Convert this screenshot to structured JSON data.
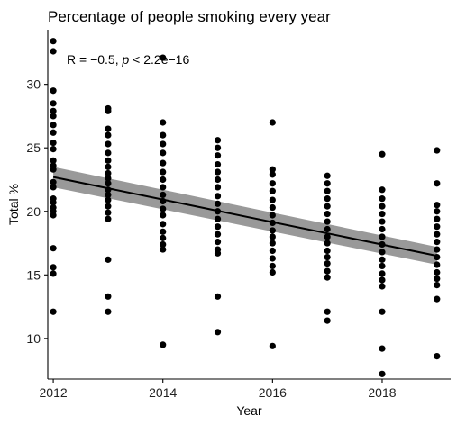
{
  "chart_data": {
    "type": "scatter",
    "title": "Percentage of people smoking every year",
    "xlabel": "Year",
    "ylabel": "Total %",
    "xlim": [
      2011.9,
      2019.25
    ],
    "ylim": [
      6.8,
      34.3
    ],
    "x_ticks": [
      2012,
      2014,
      2016,
      2018
    ],
    "y_ticks": [
      10,
      15,
      20,
      25,
      30
    ],
    "grid": false,
    "annotation": {
      "text_prefix": "R = −0.5, ",
      "p_symbol": "p",
      "text_suffix": " < 2.2e−16"
    },
    "points": [
      {
        "x": 2012,
        "y": [
          33.4,
          32.6,
          29.5,
          28.5,
          27.9,
          27.5,
          26.8,
          26.2,
          25.4,
          24.9,
          24.0,
          23.6,
          23.3,
          22.3,
          21.9,
          21.0,
          20.7,
          20.3,
          20.0,
          19.7,
          17.1,
          15.6,
          15.1,
          12.1
        ]
      },
      {
        "x": 2013,
        "y": [
          28.1,
          27.9,
          26.5,
          26.0,
          25.3,
          24.6,
          24.0,
          23.5,
          23.0,
          22.6,
          22.2,
          21.7,
          21.3,
          20.9,
          20.4,
          19.9,
          19.4,
          16.2,
          13.3,
          12.1
        ]
      },
      {
        "x": 2014,
        "y": [
          32.1,
          27.0,
          26.0,
          25.3,
          24.6,
          23.8,
          23.1,
          22.5,
          21.9,
          21.3,
          20.8,
          20.2,
          19.7,
          19.0,
          18.4,
          17.9,
          17.4,
          17.0,
          9.5
        ]
      },
      {
        "x": 2015,
        "y": [
          25.6,
          25.0,
          24.4,
          23.7,
          23.1,
          22.5,
          21.9,
          21.2,
          20.6,
          20.0,
          19.4,
          18.8,
          18.2,
          17.6,
          17.0,
          16.7,
          13.3,
          10.5
        ]
      },
      {
        "x": 2016,
        "y": [
          27.0,
          23.3,
          22.9,
          22.2,
          21.6,
          20.9,
          20.3,
          19.7,
          19.1,
          18.5,
          18.0,
          17.5,
          16.9,
          16.3,
          15.7,
          15.2,
          9.4
        ]
      },
      {
        "x": 2017,
        "y": [
          22.8,
          22.2,
          21.6,
          21.0,
          20.4,
          19.8,
          19.2,
          18.6,
          18.0,
          17.5,
          16.9,
          16.4,
          15.9,
          15.3,
          14.8,
          12.1,
          11.4
        ]
      },
      {
        "x": 2018,
        "y": [
          24.5,
          21.7,
          21.0,
          20.4,
          19.8,
          19.2,
          18.6,
          18.0,
          17.4,
          16.8,
          16.2,
          15.7,
          15.1,
          14.6,
          14.1,
          12.1,
          9.2,
          7.2
        ]
      },
      {
        "x": 2019,
        "y": [
          24.8,
          22.2,
          20.5,
          20.0,
          19.4,
          18.8,
          18.2,
          17.6,
          17.0,
          16.4,
          15.8,
          15.2,
          14.7,
          14.2,
          13.1,
          8.6
        ]
      }
    ],
    "regression": {
      "x": [
        2012,
        2019
      ],
      "y": [
        22.7,
        16.5
      ],
      "ci_lower": [
        21.9,
        15.8
      ],
      "ci_upper": [
        23.5,
        17.2
      ]
    }
  }
}
